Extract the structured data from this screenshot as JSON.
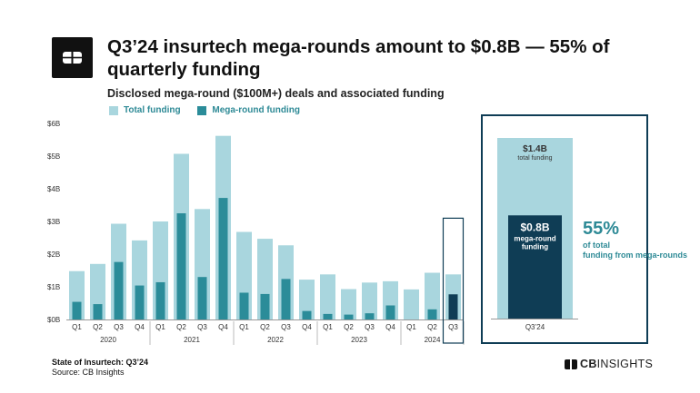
{
  "header": {
    "title": "Q3’24 insurtech mega-rounds amount to $0.8B — 55% of quarterly funding",
    "subtitle": "Disclosed mega-round ($100M+) deals and associated funding"
  },
  "legend": {
    "total_label": "Total funding",
    "mega_label": "Mega-round funding"
  },
  "colors": {
    "total": "#a9d6de",
    "mega": "#2b8c99",
    "mega_dark": "#0f3d55",
    "highlight_border": "#0f3d55",
    "text_accent": "#2e8a96"
  },
  "chart_data": [
    {
      "type": "bar",
      "x_groups": [
        {
          "year": "2020",
          "quarters": [
            "Q1",
            "Q2",
            "Q3",
            "Q4"
          ]
        },
        {
          "year": "2021",
          "quarters": [
            "Q1",
            "Q2",
            "Q3",
            "Q4"
          ]
        },
        {
          "year": "2022",
          "quarters": [
            "Q1",
            "Q2",
            "Q3",
            "Q4"
          ]
        },
        {
          "year": "2023",
          "quarters": [
            "Q1",
            "Q2",
            "Q3",
            "Q4"
          ]
        },
        {
          "year": "2024",
          "quarters": [
            "Q1",
            "Q2",
            "Q3"
          ]
        }
      ],
      "categories": [
        "Q1",
        "Q2",
        "Q3",
        "Q4",
        "Q1",
        "Q2",
        "Q3",
        "Q4",
        "Q1",
        "Q2",
        "Q3",
        "Q4",
        "Q1",
        "Q2",
        "Q3",
        "Q4",
        "Q1",
        "Q2",
        "Q3"
      ],
      "series": [
        {
          "name": "Total funding",
          "values": [
            1.48,
            1.7,
            2.93,
            2.42,
            3.0,
            5.07,
            3.38,
            5.62,
            2.68,
            2.47,
            2.27,
            1.22,
            1.38,
            0.93,
            1.13,
            1.17,
            0.92,
            1.43,
            1.38
          ]
        },
        {
          "name": "Mega-round funding",
          "values": [
            0.54,
            0.47,
            1.76,
            1.04,
            1.14,
            3.25,
            1.3,
            3.72,
            0.82,
            0.78,
            1.24,
            0.26,
            0.17,
            0.15,
            0.19,
            0.43,
            0.0,
            0.31,
            0.77
          ]
        }
      ],
      "yticks": [
        "$0B",
        "$1B",
        "$2B",
        "$3B",
        "$4B",
        "$5B",
        "$6B"
      ],
      "ylim": [
        0,
        6
      ],
      "highlight_index": 18,
      "grid": false
    },
    {
      "type": "bar",
      "categories": [
        "Q3'24"
      ],
      "series": [
        {
          "name": "Total funding",
          "values": [
            1.4
          ]
        },
        {
          "name": "Mega-round funding",
          "values": [
            0.8
          ]
        }
      ],
      "total_label_value": "$1.4B",
      "total_label_text": "total funding",
      "mega_label_value": "$0.8B",
      "mega_label_text": "mega-round funding",
      "share_value": "55%",
      "share_text": "of total funding from mega-rounds"
    }
  ],
  "footer": {
    "report": "State of Insurtech: Q3’24",
    "source": "Source: CB Insights",
    "brand_cb": "CB",
    "brand_rest": "INSIGHTS"
  }
}
